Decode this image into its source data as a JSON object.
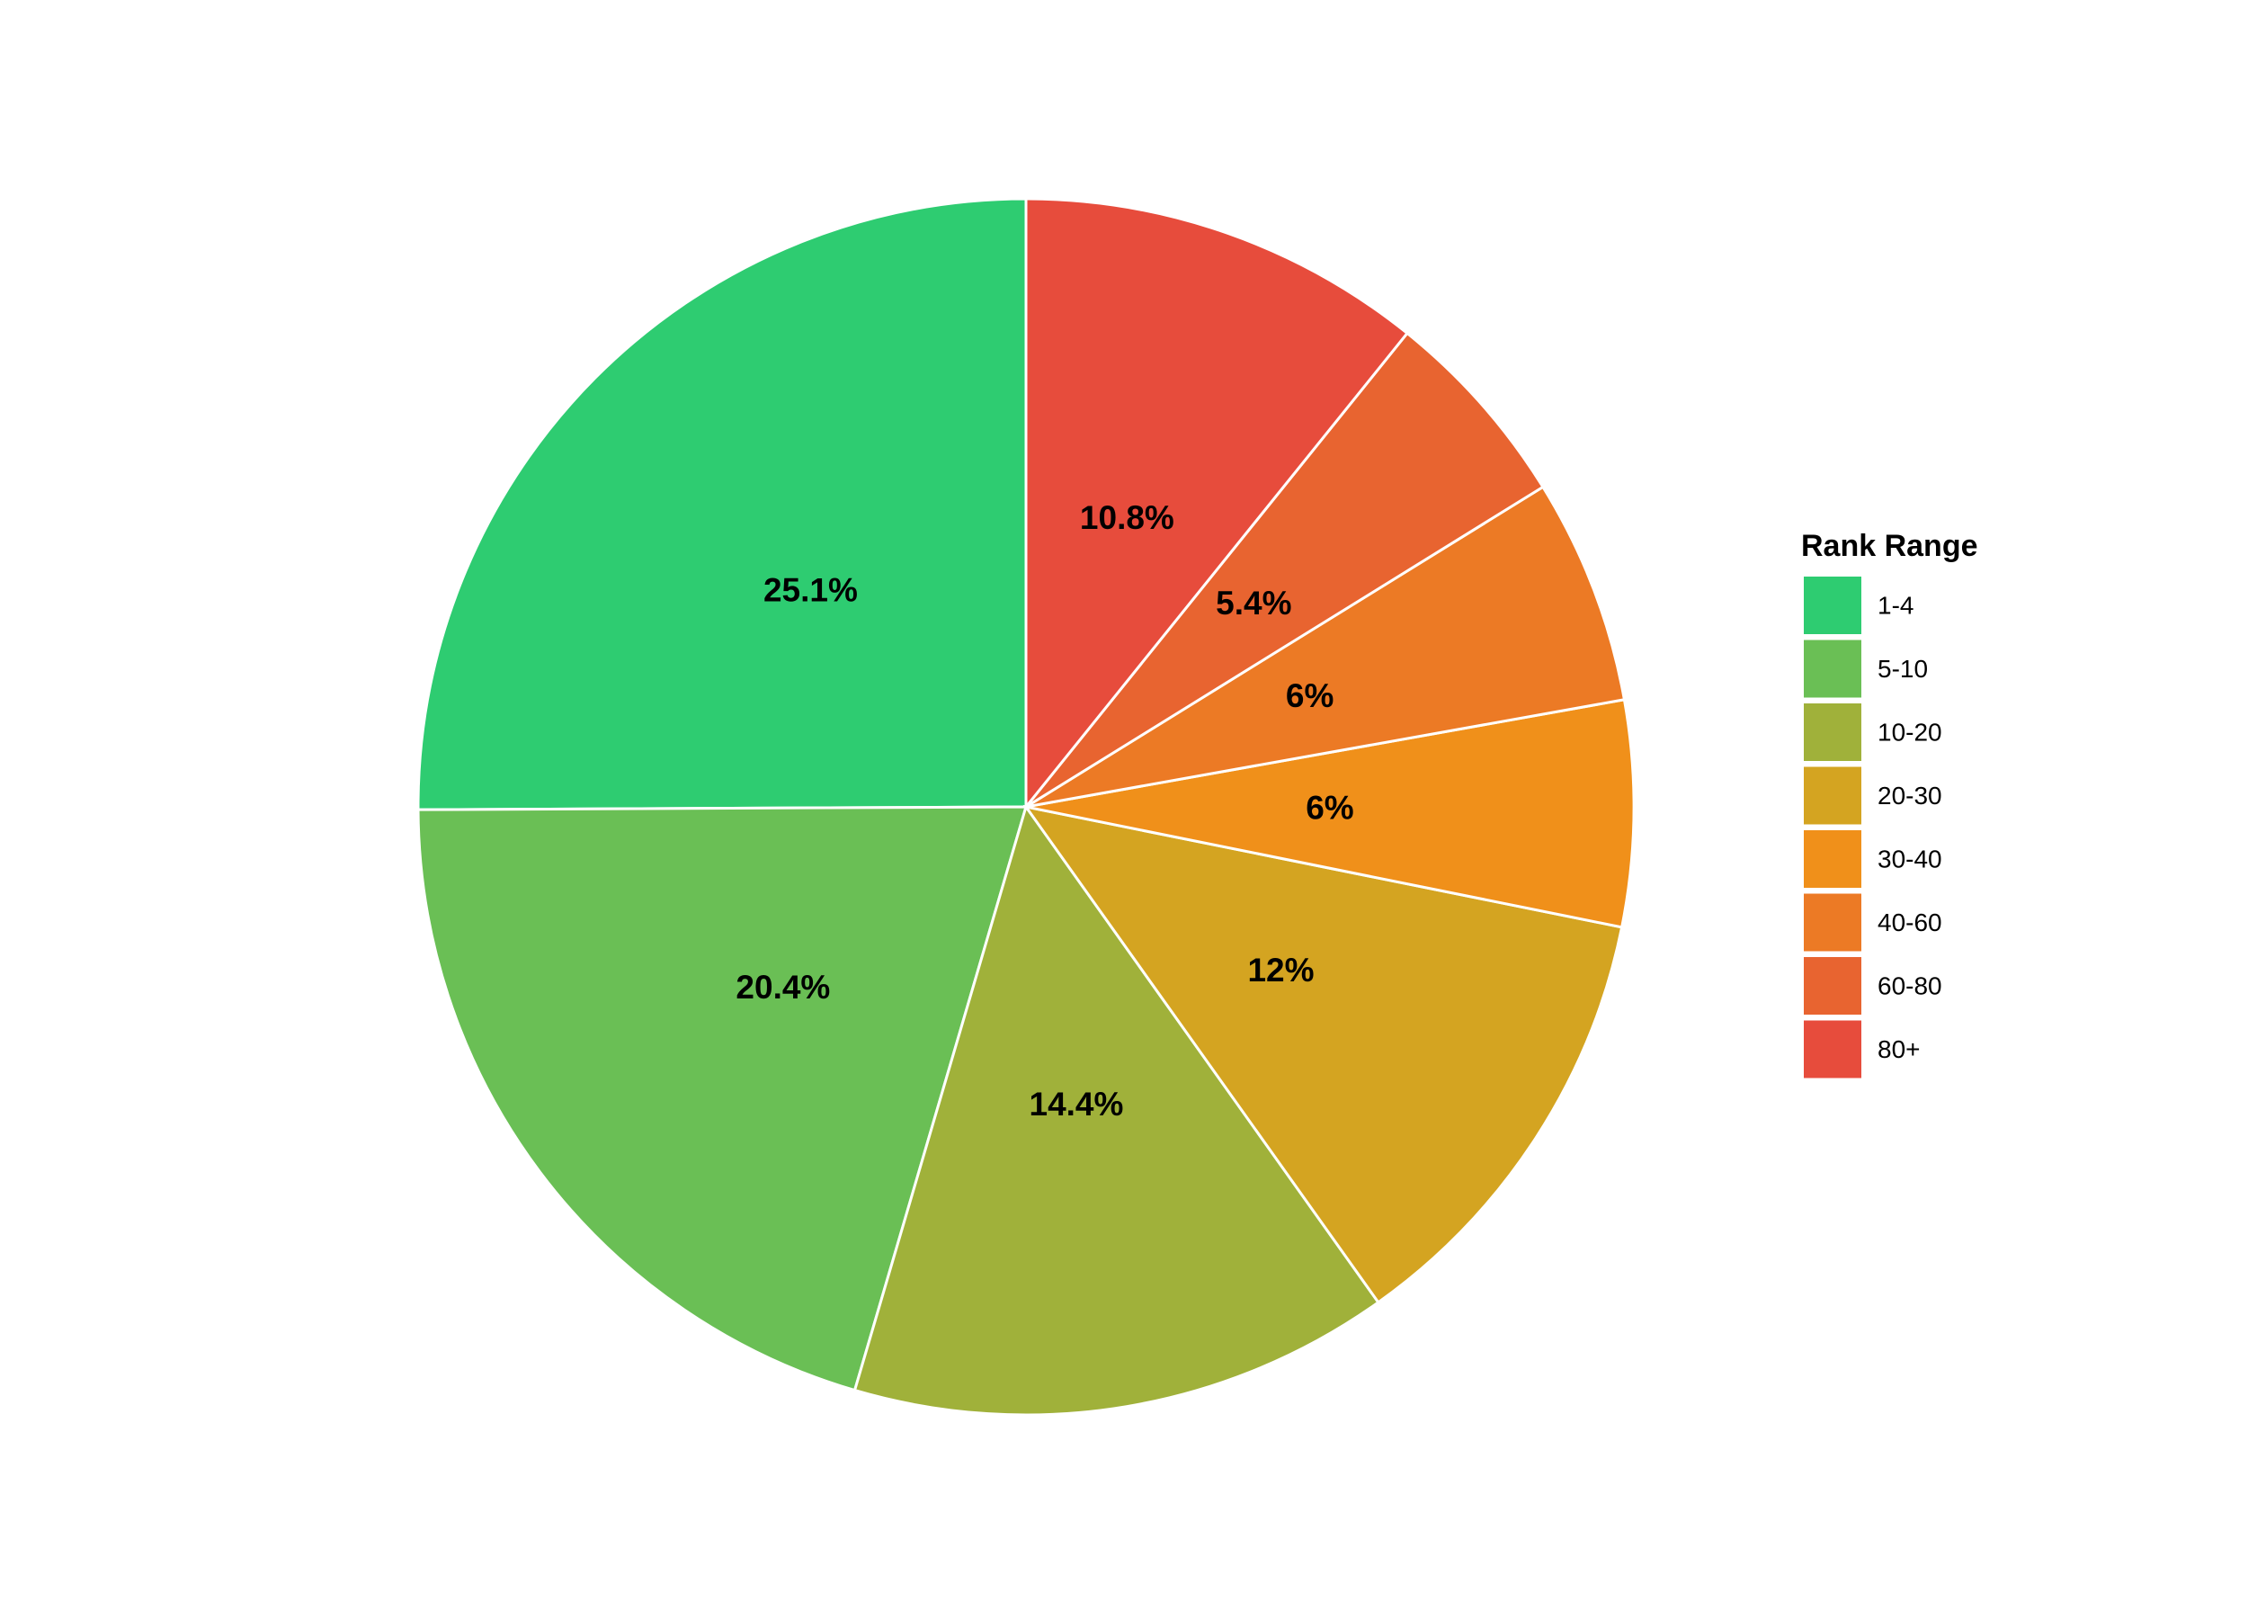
{
  "chart_data": {
    "type": "pie",
    "legend_title": "Rank Range",
    "categories": [
      "1-4",
      "5-10",
      "10-20",
      "20-30",
      "30-40",
      "40-60",
      "60-80",
      "80+"
    ],
    "values": [
      25.1,
      20.4,
      14.4,
      12,
      6,
      6,
      5.4,
      10.8
    ],
    "value_labels": [
      "25.1%",
      "20.4%",
      "14.4%",
      "12%",
      "6%",
      "6%",
      "5.4%",
      "10.8%"
    ],
    "colors": [
      "#2ecc71",
      "#6abf55",
      "#a0b13a",
      "#d4a421",
      "#f0901a",
      "#ec7a25",
      "#e86430",
      "#e74c3c"
    ],
    "legend": "right"
  }
}
